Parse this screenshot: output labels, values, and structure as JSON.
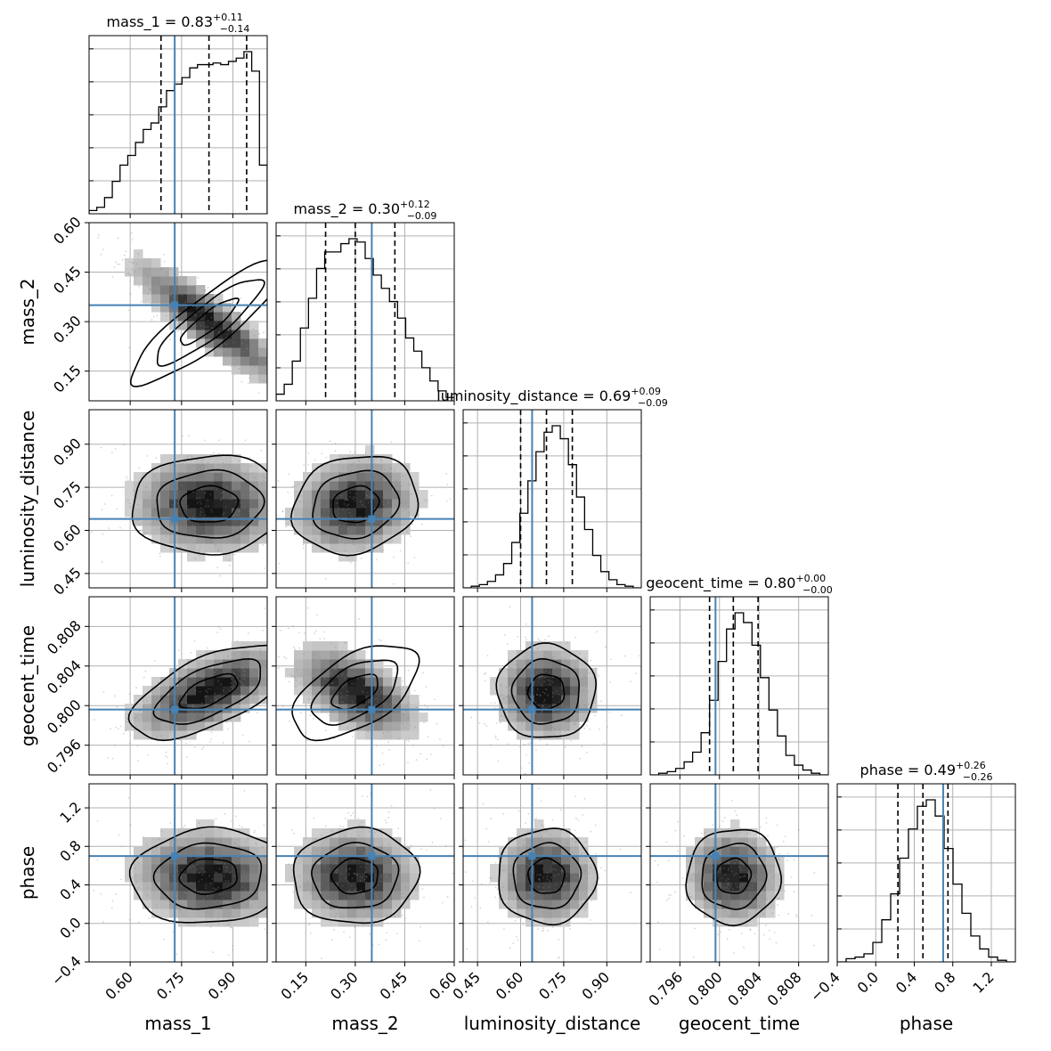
{
  "chart_data": {
    "type": "corner",
    "parameters": [
      {
        "name": "mass_1",
        "label": "mass_1",
        "range": [
          0.48,
          1.0
        ],
        "ticks": [
          0.6,
          0.75,
          0.9
        ],
        "tick_labels": [
          "0.60",
          "0.75",
          "0.90"
        ],
        "truth": 0.73,
        "quantiles": [
          0.69,
          0.83,
          0.94
        ],
        "title_prefix": "mass_1 = 0.83",
        "title_plus": "+0.11",
        "title_minus": "−0.14",
        "hist": [
          0.02,
          0.04,
          0.1,
          0.2,
          0.3,
          0.36,
          0.44,
          0.52,
          0.56,
          0.66,
          0.76,
          0.8,
          0.84,
          0.9,
          0.92,
          0.92,
          0.93,
          0.92,
          0.94,
          0.96,
          1.0,
          0.88,
          0.3
        ]
      },
      {
        "name": "mass_2",
        "label": "mass_2",
        "range": [
          0.06,
          0.6
        ],
        "ticks": [
          0.15,
          0.3,
          0.45,
          0.6
        ],
        "tick_labels": [
          "0.15",
          "0.30",
          "0.45",
          "0.60"
        ],
        "truth": 0.35,
        "quantiles": [
          0.21,
          0.3,
          0.42
        ],
        "title_prefix": "mass_2 = 0.30",
        "title_plus": "+0.12",
        "title_minus": "−0.09",
        "hist": [
          0.04,
          0.1,
          0.24,
          0.44,
          0.62,
          0.8,
          0.9,
          0.9,
          0.95,
          0.98,
          0.96,
          0.86,
          0.76,
          0.68,
          0.6,
          0.5,
          0.38,
          0.3,
          0.2,
          0.12,
          0.06,
          0.02
        ]
      },
      {
        "name": "luminosity_distance",
        "label": "luminosity_distance",
        "range": [
          0.4,
          1.02
        ],
        "ticks": [
          0.45,
          0.6,
          0.75,
          0.9
        ],
        "tick_labels": [
          "0.45",
          "0.60",
          "0.75",
          "0.90"
        ],
        "truth": 0.64,
        "quantiles": [
          0.6,
          0.69,
          0.78
        ],
        "title_prefix": "luminosity_distance = 0.69",
        "title_plus": "+0.09",
        "title_minus": "−0.09",
        "hist": [
          0.0,
          0.01,
          0.02,
          0.04,
          0.08,
          0.15,
          0.28,
          0.46,
          0.66,
          0.84,
          0.96,
          1.0,
          0.92,
          0.76,
          0.56,
          0.36,
          0.2,
          0.1,
          0.05,
          0.02,
          0.01,
          0.0
        ]
      },
      {
        "name": "geocent_time",
        "label": "geocent_time",
        "range": [
          0.793,
          0.811
        ],
        "ticks": [
          0.796,
          0.8,
          0.804,
          0.808
        ],
        "tick_labels": [
          "0.796",
          "0.800",
          "0.804",
          "0.808"
        ],
        "truth": 0.7996,
        "quantiles": [
          0.799,
          0.8014,
          0.8039
        ],
        "title_prefix": "geocent_time = 0.80",
        "title_plus": "+0.00",
        "title_minus": "−0.00",
        "hist": [
          0.0,
          0.01,
          0.02,
          0.04,
          0.08,
          0.14,
          0.26,
          0.46,
          0.7,
          0.9,
          1.0,
          0.94,
          0.8,
          0.6,
          0.4,
          0.24,
          0.12,
          0.06,
          0.03,
          0.01,
          0.0
        ]
      },
      {
        "name": "phase",
        "label": "phase",
        "range": [
          -0.4,
          1.45
        ],
        "ticks": [
          -0.4,
          0.0,
          0.4,
          0.8,
          1.2
        ],
        "tick_labels": [
          "−0.4",
          "0.0",
          "0.4",
          "0.8",
          "1.2"
        ],
        "truth": 0.7,
        "quantiles": [
          0.23,
          0.49,
          0.75
        ],
        "title_prefix": "phase = 0.49",
        "title_plus": "+0.26",
        "title_minus": "−0.26",
        "hist": [
          0.0,
          0.02,
          0.03,
          0.05,
          0.12,
          0.26,
          0.42,
          0.64,
          0.82,
          0.96,
          1.0,
          0.9,
          0.7,
          0.48,
          0.3,
          0.16,
          0.08,
          0.03,
          0.01,
          0.0
        ]
      }
    ],
    "correlations": {
      "1-0": -0.88,
      "2-0": -0.05,
      "2-1": 0.15,
      "3-0": 0.62,
      "3-1": -0.55,
      "3-2": 0.0,
      "4-0": -0.08,
      "4-1": -0.04,
      "4-2": 0.0,
      "4-3": -0.05
    },
    "means": [
      0.83,
      0.3,
      0.69,
      0.8014,
      0.49
    ],
    "sigmas": [
      0.12,
      0.1,
      0.09,
      0.0025,
      0.26
    ],
    "truth_color": "#4682b4",
    "grid": true
  }
}
